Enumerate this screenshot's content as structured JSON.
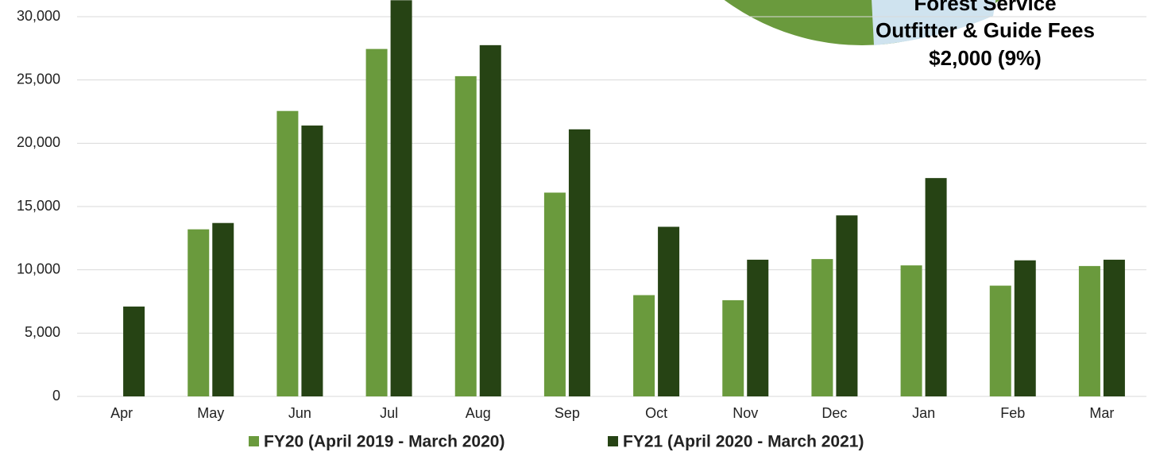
{
  "chart_data": {
    "type": "bar",
    "categories": [
      "Apr",
      "May",
      "Jun",
      "Jul",
      "Aug",
      "Sep",
      "Oct",
      "Nov",
      "Dec",
      "Jan",
      "Feb",
      "Mar"
    ],
    "series": [
      {
        "name": "FY20 (April 2019 - March 2020)",
        "color": "#6a9a3d",
        "values": [
          null,
          13200,
          22550,
          27450,
          25300,
          16100,
          8000,
          7600,
          10850,
          10350,
          8750,
          10300
        ]
      },
      {
        "name": "FY21 (April 2020 - March 2021)",
        "color": "#264314",
        "values": [
          7100,
          13700,
          21400,
          31300,
          27750,
          21100,
          13400,
          10800,
          14300,
          17250,
          10750,
          10800
        ]
      }
    ],
    "ylim": [
      0,
      30000
    ],
    "yticks": [
      0,
      {
        "value": 5000,
        "label": "5,000"
      },
      {
        "value": 10000,
        "label": "10,000"
      },
      {
        "value": 15000,
        "label": "15,000"
      },
      {
        "value": 20000,
        "label": "20,000"
      },
      {
        "value": 25000,
        "label": "25,000"
      },
      {
        "value": 30000,
        "label": "30,000"
      }
    ],
    "grid": true,
    "legend": "bottom",
    "annotations": [
      "Forest Service",
      "Outfitter & Guide Fees",
      "$2,000 (9%)"
    ]
  }
}
